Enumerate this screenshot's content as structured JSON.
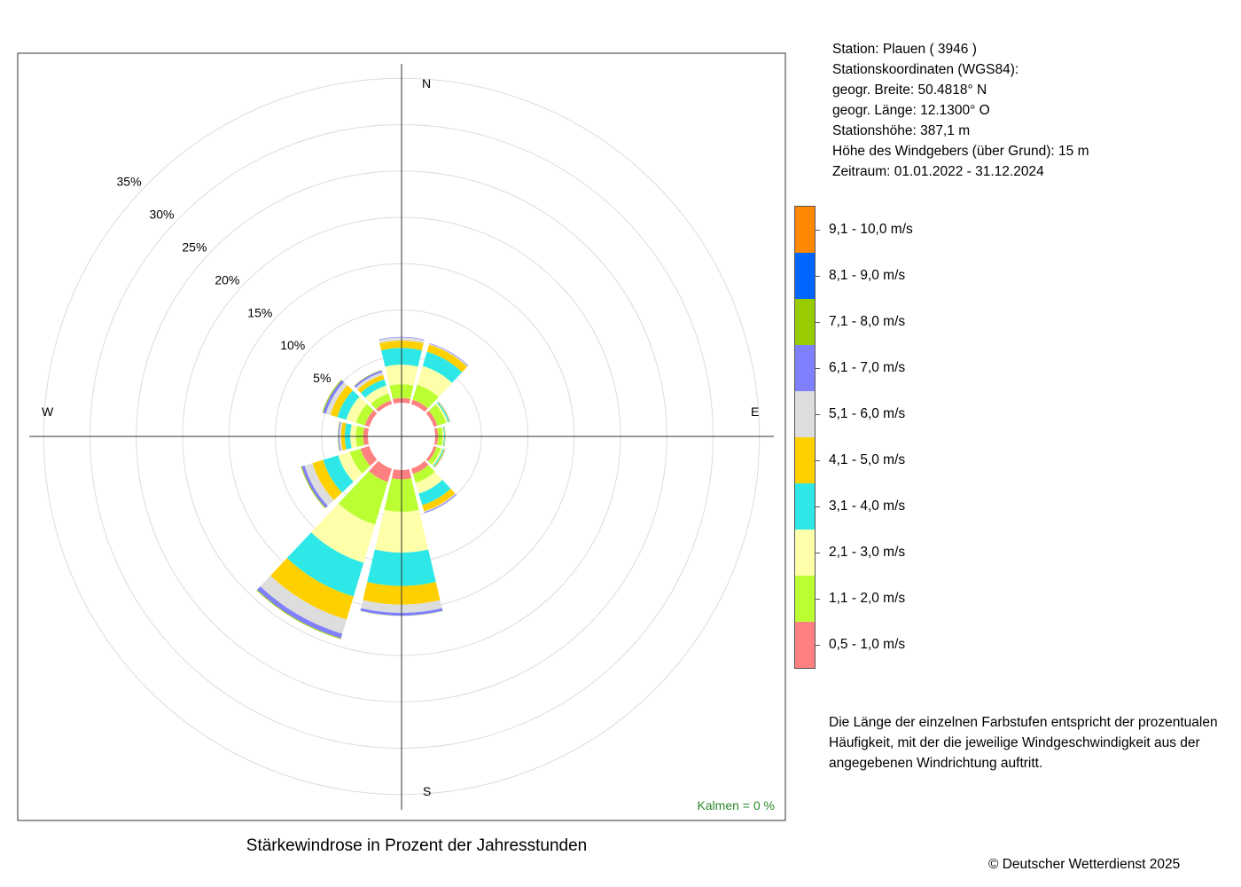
{
  "chart_data": {
    "type": "stacked-polar-bar",
    "title": "Stärkewindrose in Prozent der Jahresstunden",
    "directions": [
      "N",
      "30°",
      "60°",
      "E",
      "120°",
      "150°",
      "S",
      "210°",
      "240°",
      "W",
      "300°",
      "330°"
    ],
    "compass_labels": {
      "north": "N",
      "east": "E",
      "south": "S",
      "west": "W"
    },
    "radial_ticks": [
      5,
      10,
      15,
      20,
      25,
      30,
      35
    ],
    "radial_tick_labels": [
      "5%",
      "10%",
      "15%",
      "20%",
      "25%",
      "30%",
      "35%"
    ],
    "speed_classes": [
      {
        "label": "0,5 - 1,0 m/s",
        "color": "#ff8080"
      },
      {
        "label": "1,1 - 2,0 m/s",
        "color": "#bbff33"
      },
      {
        "label": "2,1 - 3,0 m/s",
        "color": "#ffffaa"
      },
      {
        "label": "3,1 - 4,0 m/s",
        "color": "#2ee8e8"
      },
      {
        "label": "4,1 - 5,0 m/s",
        "color": "#ffd000"
      },
      {
        "label": "5,1 - 6,0 m/s",
        "color": "#dddddd"
      },
      {
        "label": "6,1 - 7,0 m/s",
        "color": "#8080ff"
      },
      {
        "label": "7,1 - 8,0 m/s",
        "color": "#99cc00"
      },
      {
        "label": "8,1 - 9,0 m/s",
        "color": "#0066ff"
      },
      {
        "label": "9,1 - 10,0 m/s",
        "color": "#ff8800"
      }
    ],
    "series_values": [
      [
        0.5,
        1.5,
        2.1,
        1.8,
        0.8,
        0.35,
        0.05,
        0.0,
        0.0,
        0.0
      ],
      [
        0.5,
        1.7,
        2.1,
        1.6,
        0.8,
        0.1,
        0.07,
        0.0,
        0.0,
        0.0
      ],
      [
        0.4,
        1.0,
        0.2,
        0.15,
        0.07,
        0.05,
        0.02,
        0.0,
        0.0,
        0.0
      ],
      [
        0.3,
        0.5,
        0.15,
        0.1,
        0.05,
        0.02,
        0.01,
        0.0,
        0.0,
        0.0
      ],
      [
        0.3,
        0.5,
        0.2,
        0.15,
        0.1,
        0.05,
        0.02,
        0.0,
        0.0,
        0.0
      ],
      [
        0.6,
        1.0,
        1.2,
        1.3,
        0.7,
        0.1,
        0.1,
        0.0,
        0.0,
        0.0
      ],
      [
        1.0,
        3.5,
        4.4,
        3.6,
        2.0,
        0.9,
        0.3,
        0.02,
        0.0,
        0.0
      ],
      [
        1.5,
        4.8,
        4.3,
        3.8,
        2.6,
        1.6,
        0.5,
        0.1,
        0.0,
        0.0
      ],
      [
        1.0,
        1.2,
        1.3,
        1.7,
        1.2,
        0.9,
        0.3,
        0.1,
        0.0,
        0.0
      ],
      [
        0.5,
        0.8,
        0.6,
        0.6,
        0.4,
        0.2,
        0.1,
        0.05,
        0.0,
        0.0
      ],
      [
        0.5,
        1.0,
        1.1,
        1.0,
        0.8,
        0.5,
        0.3,
        0.1,
        0.0,
        0.0
      ],
      [
        0.4,
        0.8,
        0.9,
        0.7,
        0.5,
        0.3,
        0.2,
        0.05,
        0.0,
        0.0
      ]
    ],
    "calm": {
      "label": "Kalmen",
      "value": "=  0 %",
      "color": "#2a8a2a"
    },
    "rlim": [
      0,
      35
    ],
    "grid": true
  },
  "info": {
    "station": "Station:  Plauen  ( 3946 )",
    "coordinates_heading": "Stationskoordinaten (WGS84):",
    "latitude": "geogr. Breite: 50.4818° N",
    "longitude": "geogr. Länge: 12.1300° O",
    "elevation": "Stationshöhe: 387,1 m",
    "sensor_height": "Höhe des Windgebers (über Grund): 15 m",
    "period": "Zeitraum: 01.01.2022 - 31.12.2024"
  },
  "note": "Die Länge der einzelnen Farbstufen entspricht der prozentualen Häufigkeit, mit der die jeweilige Windgeschwindigkeit aus der angegebenen Windrichtung auftritt.",
  "caption": "Stärkewindrose in Prozent der Jahresstunden",
  "copyright": "© Deutscher Wetterdienst  2025"
}
